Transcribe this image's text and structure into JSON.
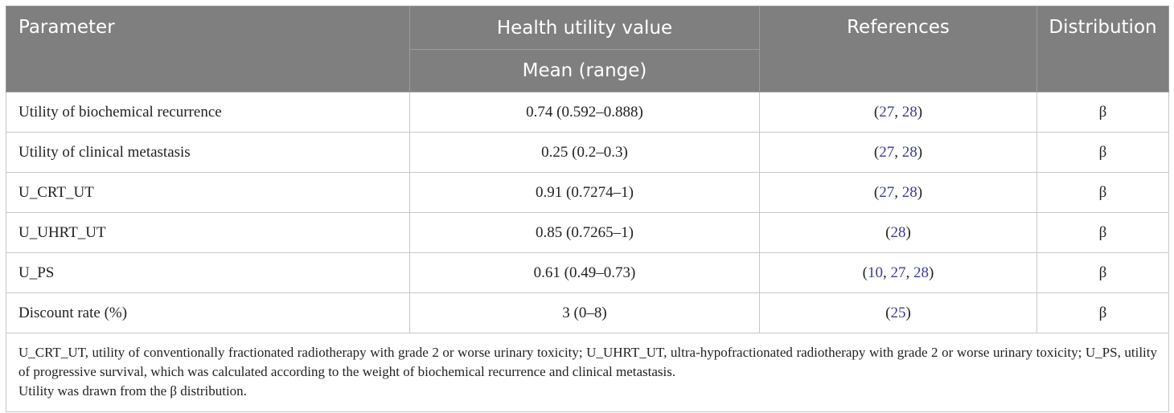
{
  "header": {
    "parameter": "Parameter",
    "health_utility_value": "Health utility value",
    "mean_range": "Mean (range)",
    "references": "References",
    "distribution": "Distribution"
  },
  "rows": [
    {
      "parameter": "Utility of biochemical recurrence",
      "value": "0.74 (0.592–0.888)",
      "refs_open": "(",
      "refs": [
        "27",
        "28"
      ],
      "refs_close": ")",
      "distribution": "β"
    },
    {
      "parameter": "Utility of clinical metastasis",
      "value": "0.25 (0.2–0.3)",
      "refs_open": "(",
      "refs": [
        "27",
        "28"
      ],
      "refs_close": ")",
      "distribution": "β"
    },
    {
      "parameter": "U_CRT_UT",
      "value": "0.91 (0.7274–1)",
      "refs_open": "(",
      "refs": [
        "27",
        "28"
      ],
      "refs_close": ")",
      "distribution": "β"
    },
    {
      "parameter": "U_UHRT_UT",
      "value": "0.85 (0.7265–1)",
      "refs_open": "(",
      "refs": [
        "28"
      ],
      "refs_close": ")",
      "distribution": "β"
    },
    {
      "parameter": "U_PS",
      "value": "0.61 (0.49–0.73)",
      "refs_open": "(",
      "refs": [
        "10",
        "27",
        "28"
      ],
      "refs_close": ")",
      "distribution": "β"
    },
    {
      "parameter": "Discount rate (%)",
      "value": "3 (0–8)",
      "refs_open": "(",
      "refs": [
        "25"
      ],
      "refs_close": ")",
      "distribution": "β"
    }
  ],
  "footnote": {
    "line1": "U_CRT_UT, utility of conventionally fractionated radiotherapy with grade 2 or worse urinary toxicity; U_UHRT_UT, ultra-hypofractionated radiotherapy with grade 2 or worse urinary toxicity; U_PS, utility of progressive survival, which was calculated according to the weight of biochemical recurrence and clinical metastasis.",
    "line2": "Utility was drawn from the β distribution."
  }
}
